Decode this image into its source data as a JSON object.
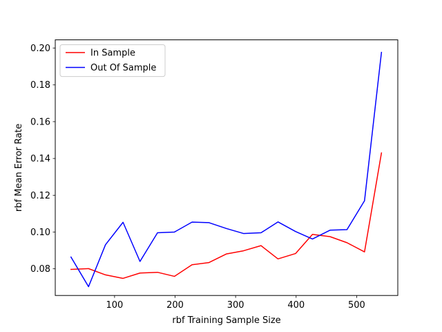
{
  "chart_data": {
    "type": "line",
    "xlabel": "rbf Training Sample Size",
    "ylabel": "rbf Mean Error Rate",
    "xlim": [
      2,
      568
    ],
    "ylim": [
      0.0655,
      0.2045
    ],
    "xticks": [
      100,
      200,
      300,
      400,
      500
    ],
    "yticks": [
      0.08,
      0.1,
      0.12,
      0.14,
      0.16,
      0.18,
      0.2
    ],
    "xtick_labels": [
      "100",
      "200",
      "300",
      "400",
      "500"
    ],
    "ytick_labels": [
      "0.08",
      "0.10",
      "0.12",
      "0.14",
      "0.16",
      "0.18",
      "0.20"
    ],
    "grid": false,
    "legend_position": "top-left",
    "x": [
      28,
      57,
      85,
      114,
      142,
      171,
      199,
      228,
      256,
      285,
      313,
      342,
      370,
      399,
      427,
      456,
      484,
      513,
      541
    ],
    "series": [
      {
        "name": "In Sample",
        "color": "#ff0000",
        "values": [
          0.0797,
          0.0801,
          0.0767,
          0.0748,
          0.0777,
          0.0781,
          0.0759,
          0.0822,
          0.0834,
          0.0881,
          0.0898,
          0.0926,
          0.0854,
          0.0883,
          0.0987,
          0.0975,
          0.0942,
          0.0892,
          0.143
        ]
      },
      {
        "name": "Out Of Sample",
        "color": "#0000ff",
        "values": [
          0.0864,
          0.0703,
          0.0931,
          0.1053,
          0.084,
          0.0996,
          0.1,
          0.1054,
          0.1051,
          0.1019,
          0.0992,
          0.0996,
          0.1055,
          0.1003,
          0.0962,
          0.101,
          0.1013,
          0.117,
          0.1977
        ]
      }
    ]
  }
}
